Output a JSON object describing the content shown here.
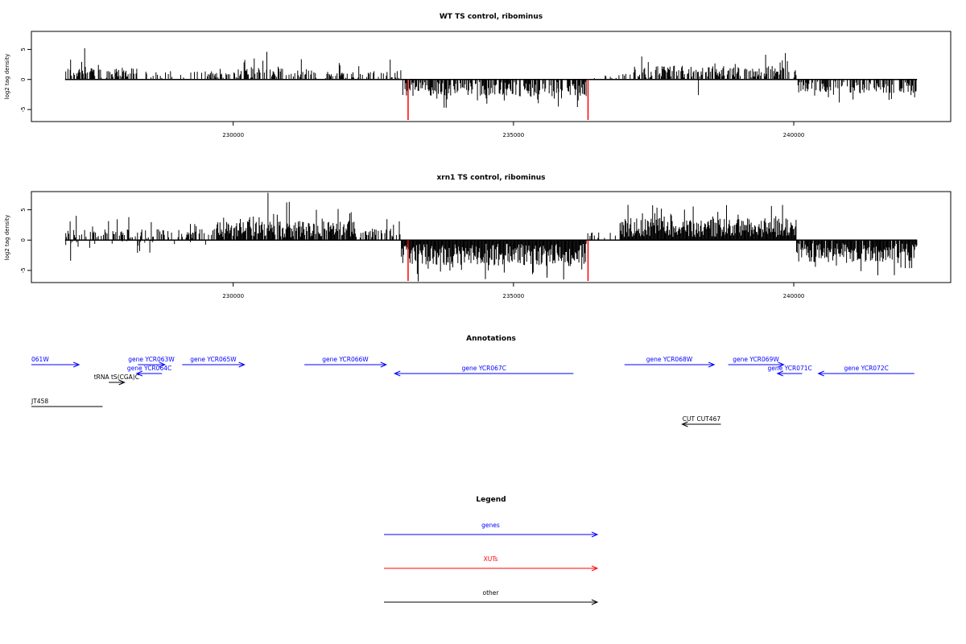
{
  "colors": {
    "genes": "#0000ff",
    "xuts": "#ff0000",
    "other": "#000000",
    "frame": "#000000"
  },
  "chart_data": [
    {
      "type": "bar",
      "title": "WT TS control, ribominus",
      "ylabel": "log2 tag density",
      "xlim": [
        226400,
        242800
      ],
      "ylim": [
        -7,
        8
      ],
      "xticks": [
        230000,
        235000,
        240000
      ],
      "xtick_labels": [
        "230000",
        "235000",
        "240000"
      ],
      "yticks": [
        -5,
        0,
        5
      ],
      "ytick_labels": [
        "-5",
        "0",
        "5"
      ],
      "grid": false,
      "segments": [
        {
          "from": 227000,
          "to": 228300,
          "sign": 1,
          "mean": 1.4,
          "spread": 2.4,
          "density": 0.55
        },
        {
          "from": 228300,
          "to": 229600,
          "sign": 1,
          "mean": 1.0,
          "spread": 1.6,
          "density": 0.3
        },
        {
          "from": 229600,
          "to": 231400,
          "sign": 1,
          "mean": 1.3,
          "spread": 2.4,
          "density": 0.55
        },
        {
          "from": 231400,
          "to": 233000,
          "sign": 1,
          "mean": 1.1,
          "spread": 2.0,
          "density": 0.3
        },
        {
          "from": 233000,
          "to": 236300,
          "sign": -1,
          "mean": 2.0,
          "spread": 2.4,
          "density": 0.7
        },
        {
          "from": 236300,
          "to": 236900,
          "sign": 1,
          "mean": 0.6,
          "spread": 0.8,
          "density": 0.08
        },
        {
          "from": 236900,
          "to": 240050,
          "sign": 1,
          "mean": 1.6,
          "spread": 2.6,
          "density": 0.6
        },
        {
          "from": 240050,
          "to": 242200,
          "sign": -1,
          "mean": 1.6,
          "spread": 2.0,
          "density": 0.65
        }
      ],
      "peaks": [
        [
          227350,
          5.2
        ],
        [
          227100,
          3.3
        ],
        [
          230600,
          4.6
        ],
        [
          232800,
          3.3
        ],
        [
          239850,
          4.4
        ],
        [
          233800,
          -4.7
        ],
        [
          235800,
          -4.5
        ],
        [
          241700,
          -3.4
        ],
        [
          238300,
          -2.6
        ]
      ],
      "highlights": [
        {
          "x": 233120,
          "y": -7,
          "color": "#ff0000"
        },
        {
          "x": 236330,
          "y": -7,
          "color": "#ff0000"
        }
      ]
    },
    {
      "type": "bar",
      "title": "xrn1 TS control, ribominus",
      "ylabel": "log2 tag density",
      "xlim": [
        226400,
        242800
      ],
      "ylim": [
        -7,
        8
      ],
      "xticks": [
        230000,
        235000,
        240000
      ],
      "xtick_labels": [
        "230000",
        "235000",
        "240000"
      ],
      "yticks": [
        -5,
        0,
        5
      ],
      "ytick_labels": [
        "-5",
        "0",
        "5"
      ],
      "grid": false,
      "segments": [
        {
          "from": 227000,
          "to": 229700,
          "sign": 1,
          "mean": 1.3,
          "spread": 2.2,
          "density": 0.45
        },
        {
          "from": 227000,
          "to": 229700,
          "sign": -1,
          "mean": 0.8,
          "spread": 1.2,
          "density": 0.12
        },
        {
          "from": 229700,
          "to": 232200,
          "sign": 1,
          "mean": 2.2,
          "spread": 3.2,
          "density": 0.9
        },
        {
          "from": 232200,
          "to": 233000,
          "sign": 1,
          "mean": 1.4,
          "spread": 2.0,
          "density": 0.4
        },
        {
          "from": 233000,
          "to": 236300,
          "sign": -1,
          "mean": 3.0,
          "spread": 3.0,
          "density": 1.0
        },
        {
          "from": 236300,
          "to": 236900,
          "sign": 1,
          "mean": 1.0,
          "spread": 1.4,
          "density": 0.1
        },
        {
          "from": 236900,
          "to": 240050,
          "sign": 1,
          "mean": 2.6,
          "spread": 3.0,
          "density": 1.0
        },
        {
          "from": 240050,
          "to": 242200,
          "sign": -1,
          "mean": 2.6,
          "spread": 2.6,
          "density": 0.95
        }
      ],
      "peaks": [
        [
          230620,
          7.8
        ],
        [
          231000,
          6.3
        ],
        [
          239800,
          5.8
        ],
        [
          233300,
          -6.8
        ],
        [
          235600,
          -6.2
        ],
        [
          241500,
          -5.8
        ],
        [
          227200,
          4.0
        ],
        [
          227100,
          -3.4
        ]
      ],
      "highlights": [
        {
          "x": 233120,
          "y": -7,
          "color": "#ff0000"
        },
        {
          "x": 236330,
          "y": -7,
          "color": "#ff0000"
        }
      ]
    }
  ],
  "annotations": {
    "title": "Annotations",
    "features": [
      {
        "label": "061W",
        "kind": "genes",
        "strand": "+",
        "start": 226400,
        "end": 227250,
        "row": 0
      },
      {
        "label": "gene YCR063W",
        "kind": "genes",
        "strand": "+",
        "start": 228300,
        "end": 228780,
        "row": 0
      },
      {
        "label": "gene YCR064C",
        "kind": "genes",
        "strand": "-",
        "start": 228280,
        "end": 228730,
        "row": 1
      },
      {
        "label": "tRNA tS(CGA)C",
        "kind": "other",
        "strand": "+",
        "start": 227780,
        "end": 228060,
        "row": 2
      },
      {
        "label": "gene YCR065W",
        "kind": "genes",
        "strand": "+",
        "start": 229090,
        "end": 230200,
        "row": 0
      },
      {
        "label": "gene YCR066W",
        "kind": "genes",
        "strand": "+",
        "start": 231270,
        "end": 232730,
        "row": 0
      },
      {
        "label": "gene YCR067C",
        "kind": "genes",
        "strand": "-",
        "start": 232880,
        "end": 236070,
        "row": 1
      },
      {
        "label": "gene YCR068W",
        "kind": "genes",
        "strand": "+",
        "start": 236980,
        "end": 238580,
        "row": 0
      },
      {
        "label": "gene YCR069W",
        "kind": "genes",
        "strand": "+",
        "start": 238830,
        "end": 239820,
        "row": 0
      },
      {
        "label": "gene YCR071C",
        "kind": "genes",
        "strand": "-",
        "start": 239710,
        "end": 240150,
        "row": 1
      },
      {
        "label": "gene YCR072C",
        "kind": "genes",
        "strand": "-",
        "start": 240440,
        "end": 242150,
        "row": 1
      },
      {
        "label": "JT458",
        "kind": "other",
        "strand": "none",
        "start": 226400,
        "end": 227670,
        "row": 3
      },
      {
        "label": "CUT CUT467",
        "kind": "other",
        "strand": "-",
        "start": 238010,
        "end": 238700,
        "row": 4
      }
    ]
  },
  "legend": {
    "title": "Legend",
    "entries": [
      {
        "label": "genes",
        "kind": "genes"
      },
      {
        "label": "XUTs",
        "kind": "xuts"
      },
      {
        "label": "other",
        "kind": "other"
      }
    ]
  }
}
